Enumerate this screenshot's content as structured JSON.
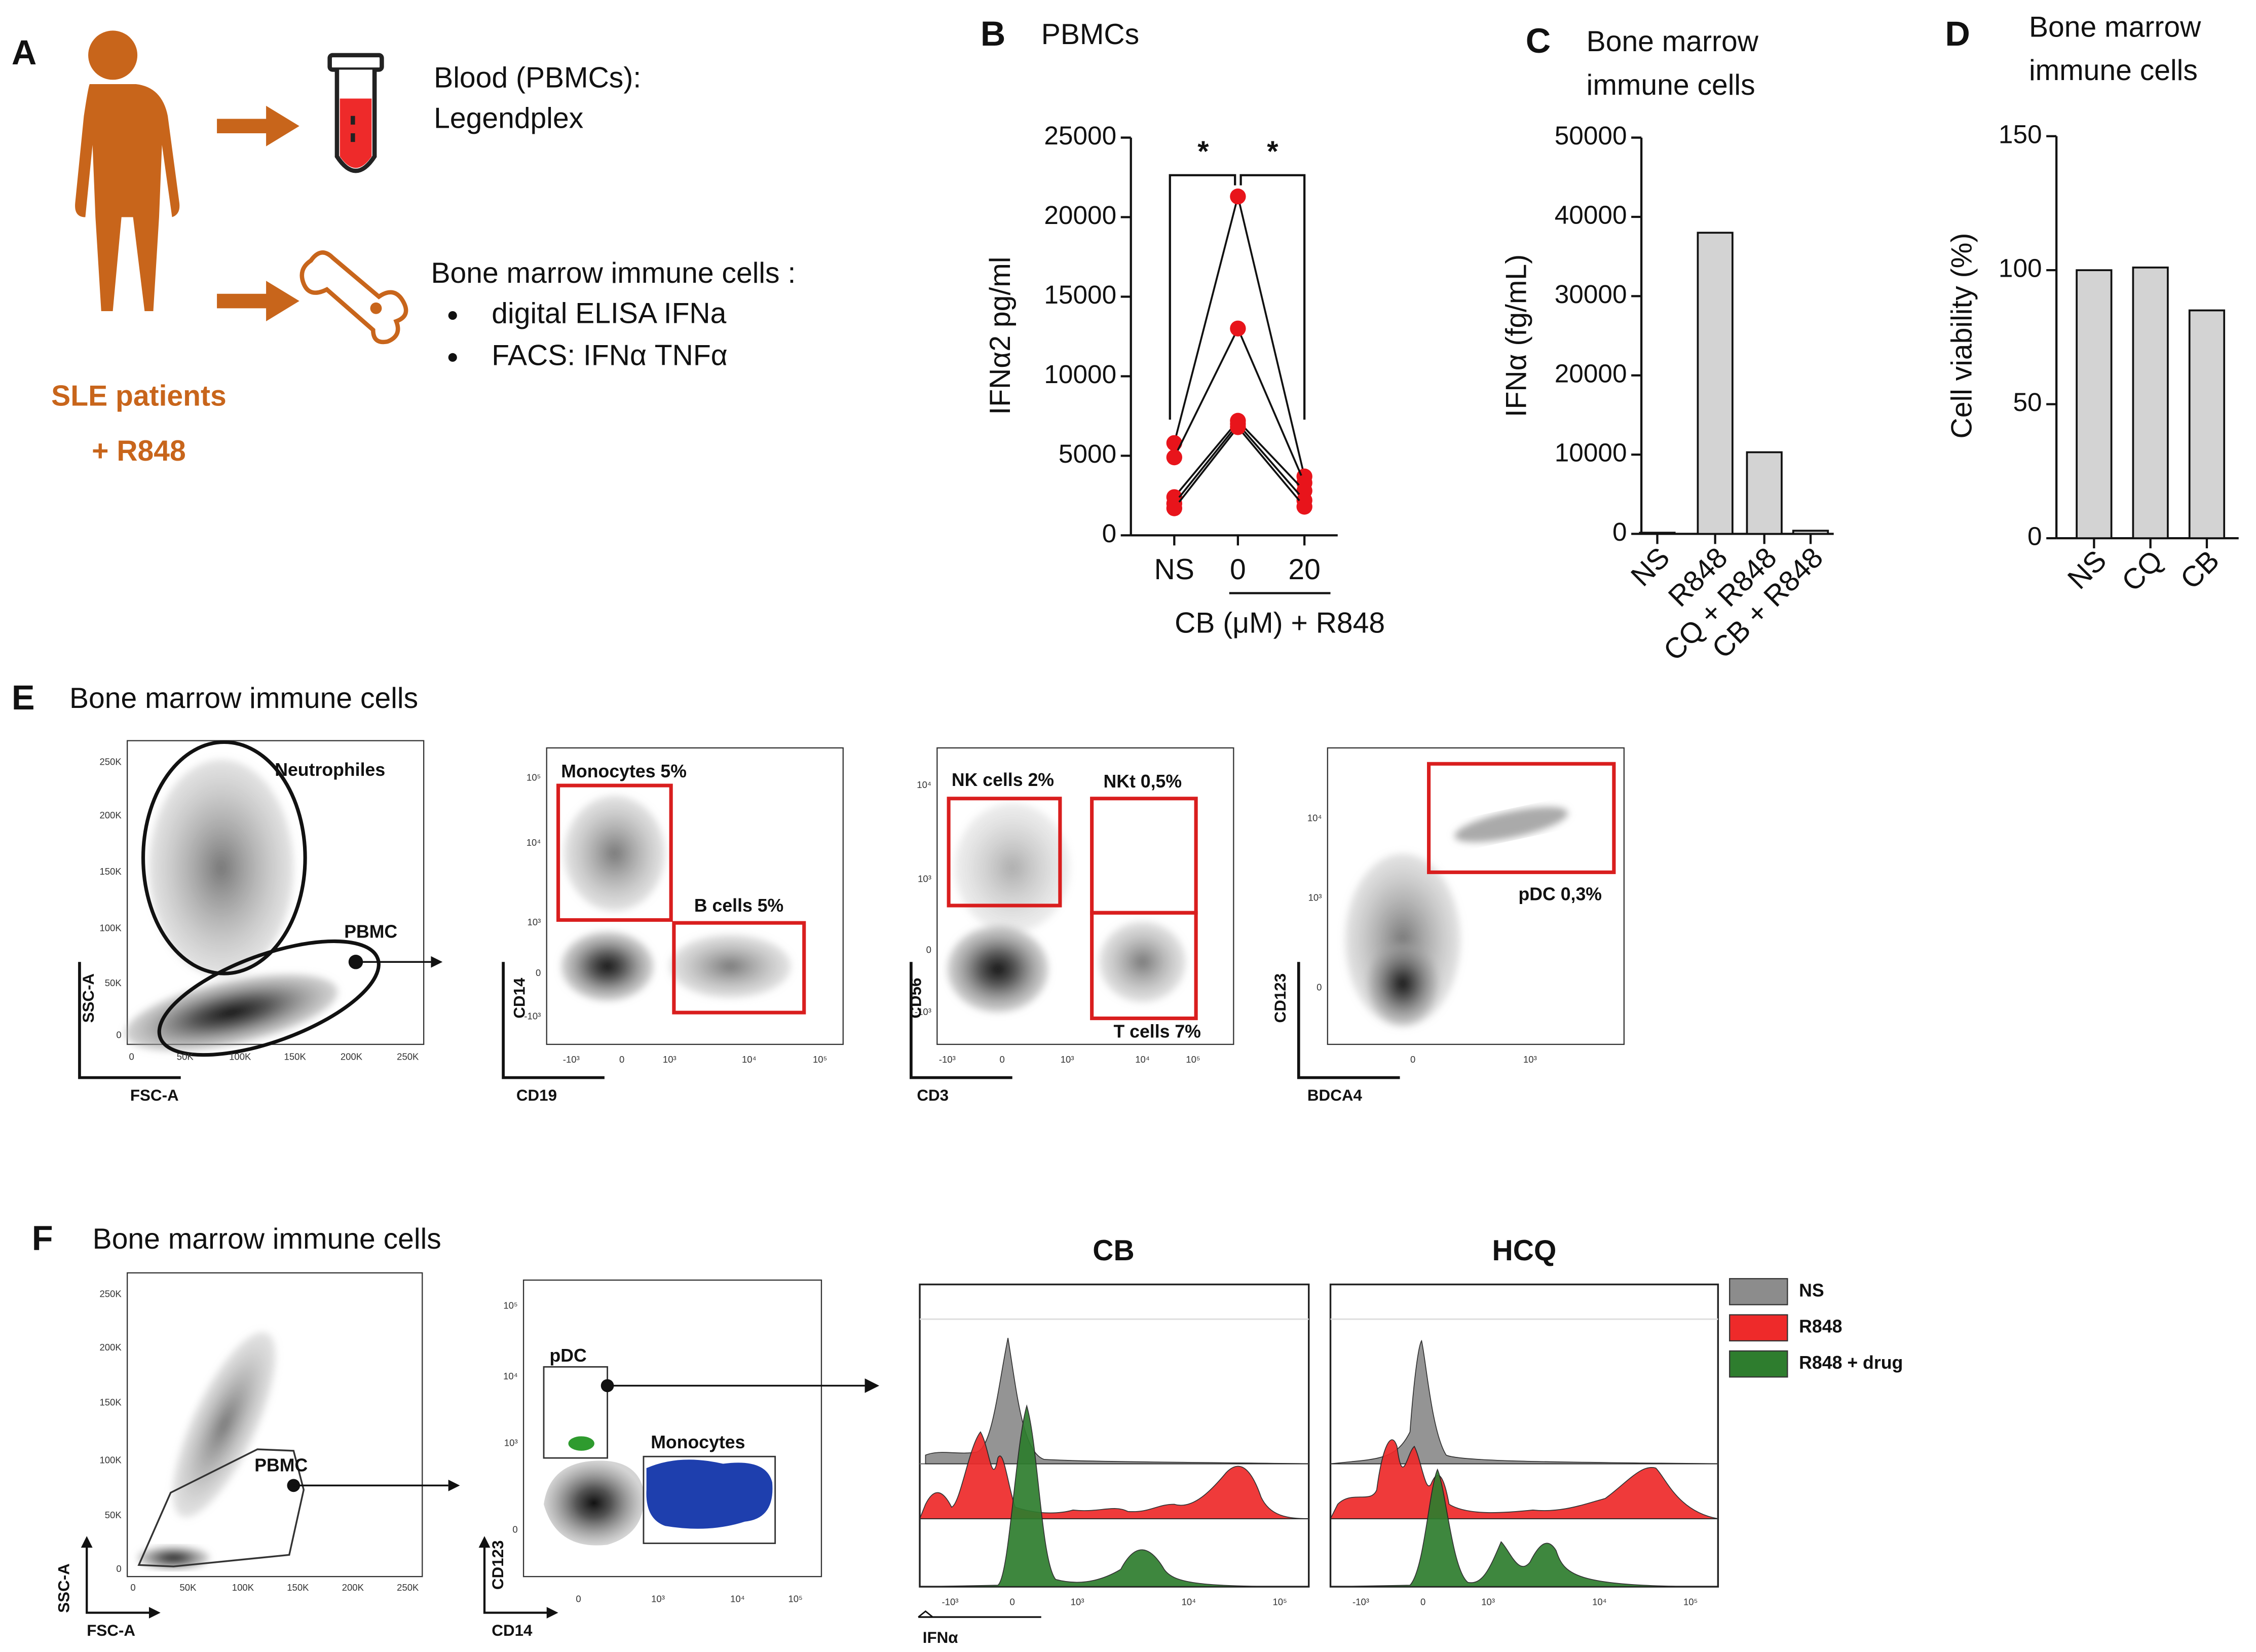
{
  "panel_labels": [
    "A",
    "E",
    "F"
  ],
  "panel_a": {
    "blood": [
      "Blood (PBMCs):",
      "Legendplex"
    ],
    "bone_marrow": "Bone marrow immune cells :",
    "bullets": [
      "digital ELISA IFNa",
      "FACS: IFNα TNFα"
    ],
    "patients": [
      "SLE patients",
      "+ R848"
    ]
  },
  "chart_data": [
    {
      "panel": "B",
      "type": "line",
      "title": [
        "PBMCs"
      ],
      "y_label": "IFNα2 pg/ml",
      "x_label": "CB (μM) + R848",
      "categories": [
        "NS",
        "0",
        "20"
      ],
      "color": "#e8141b",
      "series": [
        {
          "values": [
            5800,
            21300,
            3700
          ]
        },
        {
          "values": [
            4900,
            13000,
            3300
          ]
        },
        {
          "values": [
            2400,
            7200,
            2800
          ]
        },
        {
          "values": [
            2000,
            7000,
            2200
          ]
        },
        {
          "values": [
            1700,
            6800,
            1800
          ]
        }
      ],
      "ylim": [
        0,
        25000
      ],
      "yticks": [
        0,
        5000,
        10000,
        15000,
        20000,
        25000
      ],
      "annotations": [
        "*",
        "*"
      ],
      "grid": false
    },
    {
      "panel": "C",
      "type": "bar",
      "title": [
        "Bone marrow",
        "immune cells"
      ],
      "y_label": "IFNα (fg/mL)",
      "categories": [
        "NS",
        "R848",
        "CQ + R848",
        "CB + R848"
      ],
      "values": [
        150,
        38000,
        10300,
        400
      ],
      "color": "#d3d3d3",
      "ylim": [
        0,
        50000
      ],
      "yticks": [
        0,
        10000,
        20000,
        30000,
        40000,
        50000
      ],
      "grid": false
    },
    {
      "panel": "D",
      "type": "bar",
      "title": [
        "Bone marrow",
        "immune cells"
      ],
      "y_label": "Cell viability (%)",
      "categories": [
        "NS",
        "CQ",
        "CB"
      ],
      "values": [
        100,
        101,
        85
      ],
      "color": "#d3d3d3",
      "ylim": [
        0,
        150
      ],
      "yticks": [
        0,
        50,
        100,
        150
      ],
      "grid": false
    }
  ],
  "flow_e": {
    "title": "Bone marrow immune cells",
    "plots": [
      {
        "x_label": "FSC-A",
        "y_label": "SSC-A",
        "xticks": [
          "0",
          "50K",
          "100K",
          "150K",
          "200K",
          "250K"
        ],
        "yticks": [
          "0",
          "50K",
          "100K",
          "150K",
          "200K",
          "250K"
        ],
        "gates": [
          "Neutrophiles",
          "PBMC"
        ]
      },
      {
        "x_label": "CD19",
        "y_label": "CD14",
        "xticks": [
          "-10³",
          "0",
          "10³",
          "10⁴",
          "10⁵"
        ],
        "yticks": [
          "-10³",
          "0",
          "10³",
          "10⁴",
          "10⁵"
        ],
        "gates": [
          "Monocytes 5%",
          "B cells 5%"
        ]
      },
      {
        "x_label": "CD3",
        "y_label": "CD56",
        "xticks": [
          "-10³",
          "0",
          "10³",
          "10⁴",
          "10⁵"
        ],
        "yticks": [
          "-10³",
          "0",
          "10³",
          "10⁴"
        ],
        "gates": [
          "NK cells 2%",
          "NKt 0,5%",
          "T cells 7%"
        ]
      },
      {
        "x_label": "BDCA4",
        "y_label": "CD123",
        "xticks": [
          "0",
          "10³"
        ],
        "yticks": [
          "0",
          "10³",
          "10⁴"
        ],
        "gates": [
          "pDC 0,3%"
        ]
      }
    ]
  },
  "flow_f": {
    "title": "Bone marrow immune cells",
    "plots": [
      {
        "x_label": "FSC-A",
        "y_label": "SSC-A",
        "xticks": [
          "0",
          "50K",
          "100K",
          "150K",
          "200K",
          "250K"
        ],
        "yticks": [
          "0",
          "50K",
          "100K",
          "150K",
          "200K",
          "250K"
        ],
        "gates": [
          "PBMC"
        ]
      },
      {
        "x_label": "CD14",
        "y_label": "CD123",
        "xticks": [
          "0",
          "10³",
          "10⁴",
          "10⁵"
        ],
        "yticks": [
          "0",
          "10³",
          "10⁴",
          "10⁵"
        ],
        "gates": [
          "pDC",
          "Monocytes"
        ]
      }
    ],
    "histograms": {
      "x_label": "IFNα",
      "panels": [
        {
          "title": "CB",
          "xticks": [
            "-10³",
            "0",
            "10³",
            "10⁴",
            "10⁵"
          ]
        },
        {
          "title": "HCQ",
          "xticks": [
            "-10³",
            "0",
            "10³",
            "10⁴",
            "10⁵"
          ]
        }
      ],
      "legend": [
        {
          "name": "NS",
          "color": "#8c8c8c"
        },
        {
          "name": "R848",
          "color": "#ee2a2a"
        },
        {
          "name": "R848 + drug",
          "color": "#2e7d2e"
        }
      ]
    }
  }
}
